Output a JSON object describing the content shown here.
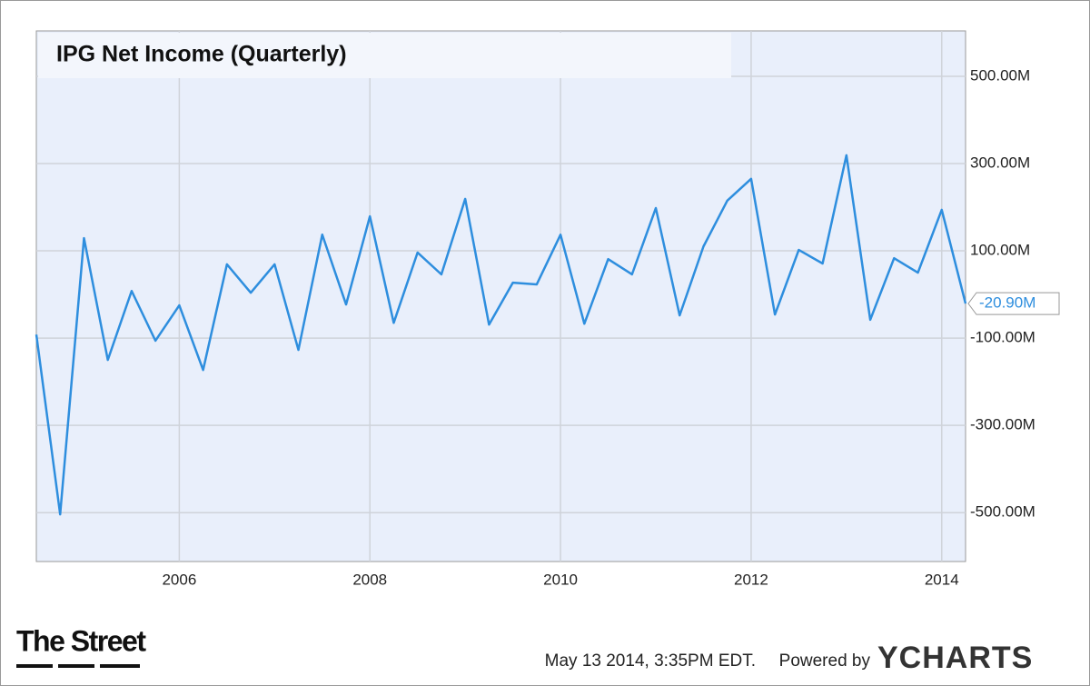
{
  "chart_data": {
    "type": "line",
    "title": "IPG Net Income (Quarterly)",
    "x": [
      2004.5,
      2004.75,
      2005,
      2005.25,
      2005.5,
      2005.75,
      2006,
      2006.25,
      2006.5,
      2006.75,
      2007,
      2007.25,
      2007.5,
      2007.75,
      2008,
      2008.25,
      2008.5,
      2008.75,
      2009,
      2009.25,
      2009.5,
      2009.75,
      2010,
      2010.25,
      2010.5,
      2010.75,
      2011,
      2011.25,
      2011.5,
      2011.75,
      2012,
      2012.25,
      2012.5,
      2012.75,
      2013,
      2013.25,
      2013.5,
      2013.75,
      2014,
      2014.25
    ],
    "series": [
      {
        "name": "IPG Net Income (Quarterly)",
        "color": "#2e8ede",
        "values": [
          -92,
          -504,
          129,
          -150,
          8,
          -106,
          -25,
          -173,
          69,
          4,
          69,
          -127,
          137,
          -23,
          179,
          -65,
          96,
          46,
          219,
          -69,
          27,
          23,
          137,
          -67,
          81,
          46,
          198,
          -48,
          110,
          215,
          265,
          -46,
          102,
          71,
          319,
          -58,
          83,
          50,
          194,
          -20.9
        ]
      }
    ],
    "end_label": "-20.90M",
    "xlim": [
      2004.5,
      2014.25
    ],
    "xticks": [
      2006,
      2008,
      2010,
      2012,
      2014
    ],
    "ylim": [
      -612,
      604
    ],
    "yticks": [
      {
        "value": -500,
        "label": "-500.00M"
      },
      {
        "value": -300,
        "label": "-300.00M"
      },
      {
        "value": -100,
        "label": "-100.00M"
      },
      {
        "value": 100,
        "label": "100.00M"
      },
      {
        "value": 300,
        "label": "300.00M"
      },
      {
        "value": 500,
        "label": "500.00M"
      }
    ],
    "grid": true
  },
  "footer": {
    "logo": "The Street",
    "timestamp": "May 13 2014, 3:35PM EDT.",
    "powered": "Powered by",
    "brand": "YCHARTS"
  }
}
